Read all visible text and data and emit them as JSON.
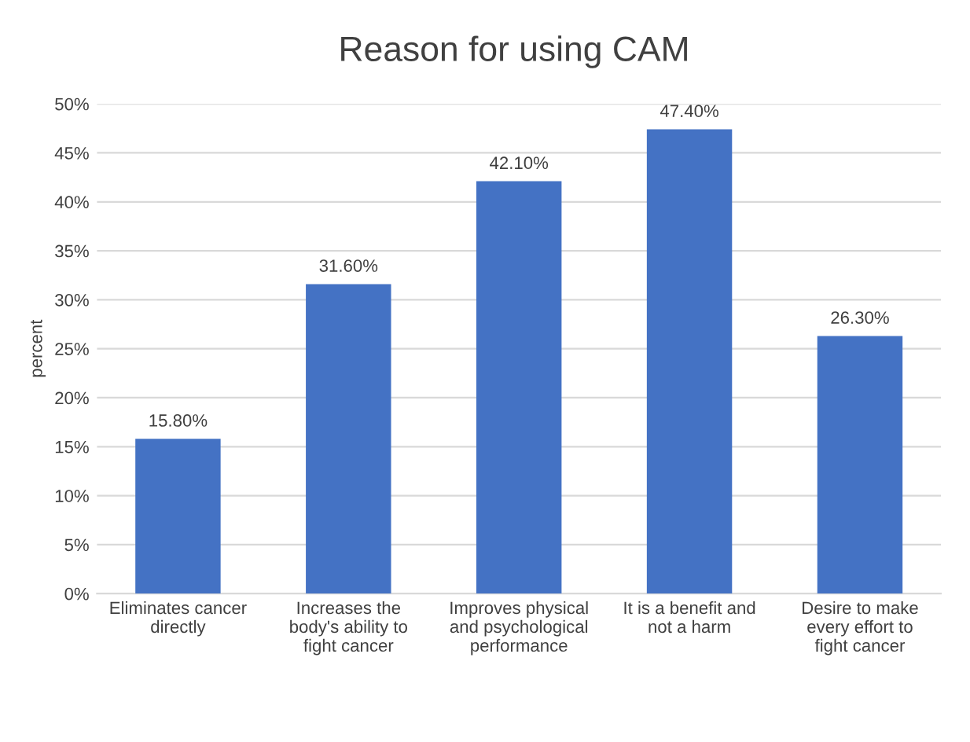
{
  "chart_data": {
    "type": "bar",
    "title": "Reason for using CAM",
    "ylabel": "percent",
    "categories": [
      "Eliminates cancer\ndirectly",
      "Increases the\nbody's ability to\nfight cancer",
      "Improves physical\nand psychological\nperformance",
      "It is a benefit and\nnot a harm",
      "Desire to make\nevery effort to\nfight cancer"
    ],
    "values": [
      15.8,
      31.6,
      42.1,
      47.4,
      26.3
    ],
    "value_labels": [
      "15.80%",
      "31.60%",
      "42.10%",
      "47.40%",
      "26.30%"
    ],
    "color": "#4472c4",
    "ylim": [
      0,
      50
    ],
    "yticks": [
      {
        "value": 0,
        "label": "0%"
      },
      {
        "value": 5,
        "label": "5%"
      },
      {
        "value": 10,
        "label": "10%"
      },
      {
        "value": 15,
        "label": "15%"
      },
      {
        "value": 20,
        "label": "20%"
      },
      {
        "value": 25,
        "label": "25%"
      },
      {
        "value": 30,
        "label": "30%"
      },
      {
        "value": 35,
        "label": "35%"
      },
      {
        "value": 40,
        "label": "40%"
      },
      {
        "value": 45,
        "label": "45%"
      },
      {
        "value": 50,
        "label": "50%"
      }
    ],
    "grid": "y"
  }
}
